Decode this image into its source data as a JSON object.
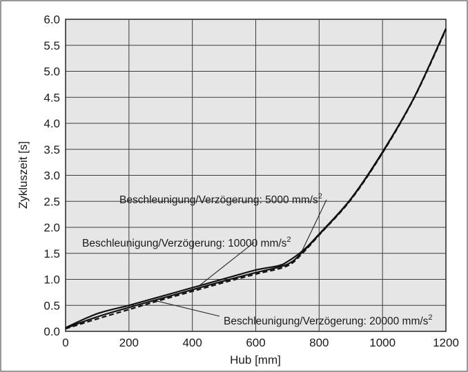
{
  "chart_data": {
    "type": "line",
    "title": "",
    "xlabel": "Hub [mm]",
    "ylabel": "Zykluszeit [s]",
    "xlim": [
      0,
      1200
    ],
    "ylim": [
      0,
      6.0
    ],
    "grid": true,
    "x_ticks": [
      "0",
      "200",
      "400",
      "600",
      "800",
      "1000",
      "1200"
    ],
    "y_ticks": [
      "0.0",
      "0.5",
      "1.0",
      "1.5",
      "2.0",
      "2.5",
      "3.0",
      "3.5",
      "4.0",
      "4.5",
      "5.0",
      "5.5",
      "6.0"
    ],
    "series": [
      {
        "name": "Beschleunigung/Verzögerung: 5000 mm/s2",
        "style": "solid",
        "points": [
          [
            0,
            0.07
          ],
          [
            100,
            0.34
          ],
          [
            200,
            0.5
          ],
          [
            300,
            0.67
          ],
          [
            400,
            0.84
          ],
          [
            500,
            1.01
          ],
          [
            600,
            1.18
          ],
          [
            670,
            1.26
          ],
          [
            700,
            1.34
          ],
          [
            750,
            1.56
          ],
          [
            800,
            1.87
          ],
          [
            900,
            2.55
          ],
          [
            1000,
            3.45
          ],
          [
            1100,
            4.5
          ],
          [
            1200,
            5.82
          ]
        ]
      },
      {
        "name": "Beschleunigung/Verzögerung: 10000 mm/s2",
        "style": "solid",
        "points": [
          [
            0,
            0.06
          ],
          [
            100,
            0.28
          ],
          [
            200,
            0.46
          ],
          [
            300,
            0.63
          ],
          [
            400,
            0.8
          ],
          [
            500,
            0.97
          ],
          [
            600,
            1.13
          ],
          [
            700,
            1.29
          ],
          [
            750,
            1.54
          ],
          [
            800,
            1.86
          ],
          [
            900,
            2.54
          ],
          [
            1000,
            3.44
          ],
          [
            1100,
            4.5
          ],
          [
            1200,
            5.82
          ]
        ]
      },
      {
        "name": "Beschleunigung/Verzögerung: 20000 mm/s2",
        "style": "dashed",
        "points": [
          [
            0,
            0.05
          ],
          [
            100,
            0.24
          ],
          [
            200,
            0.42
          ],
          [
            300,
            0.6
          ],
          [
            400,
            0.77
          ],
          [
            500,
            0.94
          ],
          [
            600,
            1.1
          ],
          [
            700,
            1.26
          ],
          [
            750,
            1.52
          ],
          [
            800,
            1.85
          ],
          [
            900,
            2.53
          ],
          [
            1000,
            3.43
          ],
          [
            1100,
            4.49
          ],
          [
            1200,
            5.8
          ]
        ]
      }
    ],
    "annotations": [
      {
        "text": "Beschleunigung/Verzögerung: 5000 mm/s",
        "sup": "2"
      },
      {
        "text": "Beschleunigung/Verzögerung: 10000 mm/s",
        "sup": "2"
      },
      {
        "text": "Beschleunigung/Verzögerung: 20000 mm/s",
        "sup": "2"
      }
    ],
    "colors": {
      "plot_bg": "#e6e6e6",
      "grid": "#3a3a3a",
      "line": "#111111",
      "text": "#1a1a1a"
    }
  }
}
